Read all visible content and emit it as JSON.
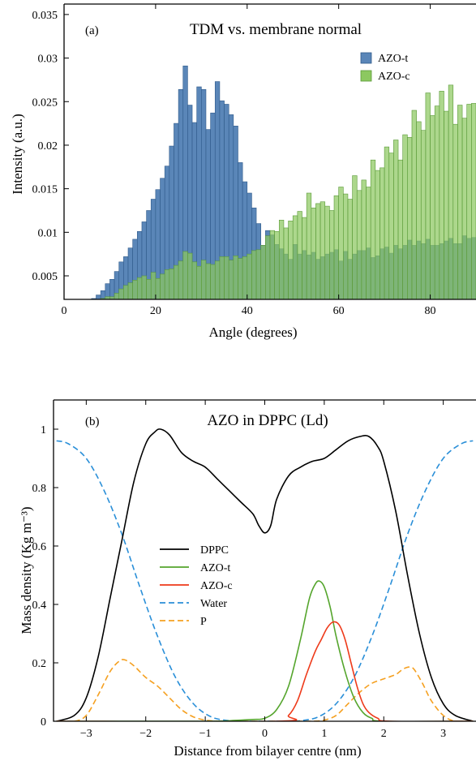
{
  "chart_data": [
    {
      "type": "bar",
      "panel_label": "(a)",
      "title": "TDM vs. membrane normal",
      "xlabel": "Angle (degrees)",
      "ylabel": "Intensity (a.u.)",
      "xlim": [
        0,
        90
      ],
      "ylim": [
        0.0023,
        0.0362
      ],
      "xticks": [
        0,
        20,
        40,
        60,
        80
      ],
      "yticks": [
        0.005,
        0.01,
        0.015,
        0.02,
        0.025,
        0.03,
        0.035
      ],
      "ytick_labels": [
        "0.005",
        "0.01",
        "0.015",
        "0.02",
        "0.025",
        "0.03",
        "0.035"
      ],
      "bin_width": 1,
      "legend_position": "top-right",
      "series": [
        {
          "name": "AZO-t",
          "color": "#5a86b8",
          "bin_start": 6,
          "values": [
            0.0024,
            0.0028,
            0.0033,
            0.0041,
            0.0046,
            0.0055,
            0.0066,
            0.0072,
            0.0082,
            0.0092,
            0.0101,
            0.0112,
            0.0125,
            0.0138,
            0.0149,
            0.0162,
            0.0176,
            0.0199,
            0.0225,
            0.0264,
            0.0291,
            0.0246,
            0.0226,
            0.0267,
            0.0264,
            0.0218,
            0.0237,
            0.0273,
            0.0251,
            0.0247,
            0.0235,
            0.0222,
            0.018,
            0.0158,
            0.0145,
            0.0128,
            0.011,
            0.0085,
            0.0102,
            0.0097,
            0.0086,
            0.0081,
            0.0075,
            0.0069,
            0.0086,
            0.0075,
            0.0079,
            0.0074,
            0.0077,
            0.0069,
            0.0072,
            0.0075,
            0.0077,
            0.008,
            0.0067,
            0.0078,
            0.0069,
            0.0075,
            0.0079,
            0.0079,
            0.0082,
            0.0071,
            0.0073,
            0.0081,
            0.0083,
            0.0076,
            0.0085,
            0.0081,
            0.0085,
            0.0091,
            0.0085,
            0.009,
            0.0087,
            0.0092,
            0.0085,
            0.0085,
            0.0087,
            0.009,
            0.0093,
            0.0087,
            0.0087,
            0.0096,
            0.0093,
            0.0094
          ]
        },
        {
          "name": "AZO-c",
          "color": "#8cc860",
          "bin_start": 8,
          "values": [
            0.0024,
            0.0026,
            0.0026,
            0.003,
            0.0035,
            0.0039,
            0.0042,
            0.0045,
            0.0048,
            0.005,
            0.0046,
            0.0054,
            0.0047,
            0.0052,
            0.0057,
            0.0058,
            0.0062,
            0.0067,
            0.0078,
            0.0076,
            0.0066,
            0.0061,
            0.0068,
            0.0064,
            0.0063,
            0.0067,
            0.0072,
            0.0072,
            0.0068,
            0.0073,
            0.007,
            0.0072,
            0.0075,
            0.0079,
            0.008,
            0.0085,
            0.0096,
            0.0102,
            0.0101,
            0.0114,
            0.0105,
            0.0113,
            0.0119,
            0.0124,
            0.0117,
            0.0145,
            0.0128,
            0.0133,
            0.0135,
            0.013,
            0.0125,
            0.0142,
            0.0152,
            0.0144,
            0.0138,
            0.0165,
            0.0148,
            0.016,
            0.0152,
            0.0183,
            0.0171,
            0.0174,
            0.0198,
            0.0191,
            0.0206,
            0.0183,
            0.0212,
            0.0209,
            0.024,
            0.0227,
            0.0217,
            0.026,
            0.0234,
            0.0245,
            0.0262,
            0.0239,
            0.0269,
            0.0224,
            0.0246,
            0.0231,
            0.0247,
            0.0248
          ]
        }
      ]
    },
    {
      "type": "line",
      "panel_label": "(b)",
      "title": "AZO in DPPC (Ld)",
      "xlabel": "Distance from bilayer centre (nm)",
      "ylabel": "Mass density (Kg m⁻³)",
      "xlim": [
        -3.55,
        3.55
      ],
      "ylim": [
        0,
        1.1
      ],
      "xticks": [
        -3,
        -2,
        -1,
        0,
        1,
        2,
        3
      ],
      "xtick_labels": [
        "−3",
        "−2",
        "−1",
        "0",
        "1",
        "2",
        "3"
      ],
      "yticks": [
        0,
        0.2,
        0.4,
        0.6,
        0.8,
        1
      ],
      "ytick_labels": [
        "0",
        "0.2",
        "0.4",
        "0.6",
        "0.8",
        "1"
      ],
      "legend_position": "center-left",
      "series": [
        {
          "name": "DPPC",
          "color": "#000000",
          "dashed": false,
          "x": [
            -3.5,
            -3.2,
            -3.0,
            -2.8,
            -2.6,
            -2.4,
            -2.2,
            -2.0,
            -1.85,
            -1.75,
            -1.6,
            -1.4,
            -1.2,
            -1.0,
            -0.8,
            -0.6,
            -0.4,
            -0.2,
            -0.1,
            0.0,
            0.1,
            0.2,
            0.4,
            0.6,
            0.8,
            1.0,
            1.2,
            1.4,
            1.6,
            1.75,
            1.9,
            2.0,
            2.2,
            2.4,
            2.6,
            2.8,
            3.0,
            3.2,
            3.5
          ],
          "y": [
            0.0,
            0.02,
            0.08,
            0.22,
            0.42,
            0.62,
            0.82,
            0.95,
            0.99,
            1.0,
            0.98,
            0.92,
            0.89,
            0.87,
            0.83,
            0.79,
            0.75,
            0.71,
            0.67,
            0.645,
            0.67,
            0.76,
            0.84,
            0.87,
            0.89,
            0.9,
            0.93,
            0.96,
            0.975,
            0.975,
            0.94,
            0.89,
            0.72,
            0.5,
            0.3,
            0.15,
            0.06,
            0.02,
            0.0
          ]
        },
        {
          "name": "AZO-t",
          "color": "#55a52d",
          "dashed": false,
          "x": [
            -3.5,
            -1.0,
            -0.5,
            -0.2,
            0.0,
            0.2,
            0.4,
            0.6,
            0.75,
            0.85,
            0.92,
            1.0,
            1.1,
            1.2,
            1.35,
            1.5,
            1.65,
            1.8,
            2.0,
            3.5
          ],
          "y": [
            0.0,
            0.0,
            0.003,
            0.006,
            0.01,
            0.04,
            0.12,
            0.28,
            0.42,
            0.47,
            0.48,
            0.46,
            0.39,
            0.29,
            0.17,
            0.08,
            0.03,
            0.01,
            0.0,
            0.0
          ]
        },
        {
          "name": "AZO-c",
          "color": "#ee3a1a",
          "dashed": false,
          "x": [
            -3.5,
            0.2,
            0.4,
            0.55,
            0.7,
            0.85,
            0.95,
            1.05,
            1.15,
            1.25,
            1.35,
            1.45,
            1.55,
            1.65,
            1.75,
            1.9,
            2.1,
            3.5
          ],
          "y": [
            0.0,
            0.0,
            0.02,
            0.07,
            0.16,
            0.24,
            0.28,
            0.32,
            0.34,
            0.33,
            0.28,
            0.2,
            0.12,
            0.06,
            0.03,
            0.01,
            0.0,
            0.0
          ]
        },
        {
          "name": "Water",
          "color": "#2a8fd8",
          "dashed": true,
          "x": [
            -3.5,
            -3.3,
            -3.0,
            -2.7,
            -2.4,
            -2.1,
            -1.8,
            -1.5,
            -1.2,
            -0.9,
            -0.6,
            -0.4,
            -0.2,
            0.0,
            0.2,
            0.4,
            0.6,
            0.9,
            1.2,
            1.5,
            1.8,
            2.1,
            2.4,
            2.7,
            3.0,
            3.3,
            3.5
          ],
          "y": [
            0.96,
            0.95,
            0.9,
            0.79,
            0.64,
            0.46,
            0.29,
            0.15,
            0.06,
            0.015,
            0.002,
            0.0,
            0.0,
            0.0,
            0.0,
            0.0,
            0.002,
            0.015,
            0.06,
            0.15,
            0.29,
            0.46,
            0.64,
            0.79,
            0.9,
            0.95,
            0.96
          ]
        },
        {
          "name": "P",
          "color": "#f5a020",
          "dashed": true,
          "x": [
            -3.5,
            -3.2,
            -3.0,
            -2.8,
            -2.6,
            -2.45,
            -2.35,
            -2.2,
            -2.0,
            -1.8,
            -1.6,
            -1.4,
            -1.2,
            -1.0,
            -0.8,
            -0.6,
            0.0,
            0.6,
            0.8,
            1.0,
            1.2,
            1.4,
            1.6,
            1.8,
            2.0,
            2.2,
            2.3,
            2.4,
            2.5,
            2.65,
            2.8,
            3.0,
            3.2,
            3.5
          ],
          "y": [
            0.0,
            0.0,
            0.02,
            0.09,
            0.17,
            0.205,
            0.21,
            0.19,
            0.15,
            0.12,
            0.08,
            0.04,
            0.015,
            0.004,
            0.0,
            0.0,
            0.0,
            0.0,
            0.0,
            0.004,
            0.02,
            0.06,
            0.1,
            0.13,
            0.145,
            0.16,
            0.175,
            0.185,
            0.18,
            0.13,
            0.07,
            0.02,
            0.0,
            0.0
          ]
        }
      ]
    }
  ]
}
